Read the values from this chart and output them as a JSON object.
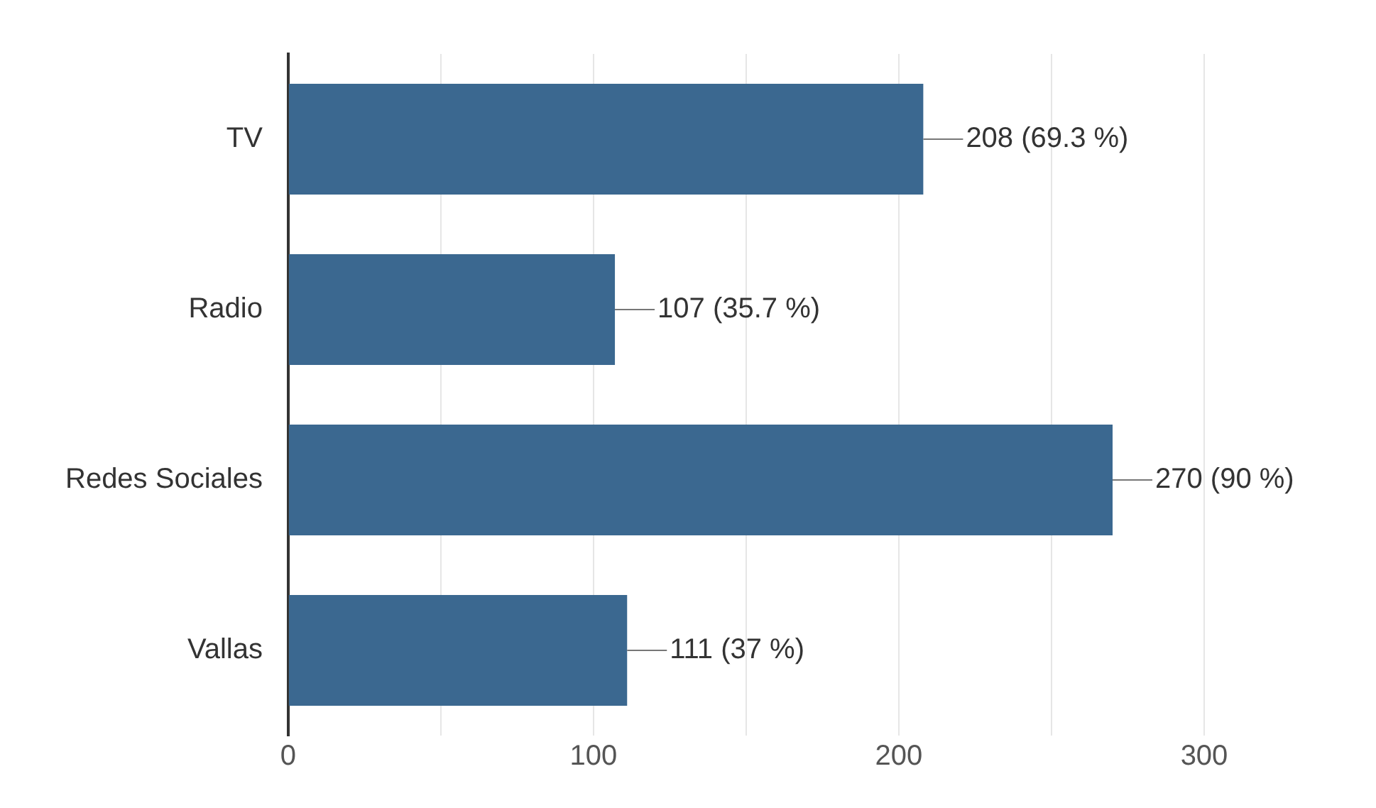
{
  "chart_data": {
    "type": "bar",
    "orientation": "horizontal",
    "categories": [
      "TV",
      "Radio",
      "Redes Sociales",
      "Vallas"
    ],
    "values": [
      208,
      107,
      270,
      111
    ],
    "value_labels": [
      "208 (69.3 %)",
      "107 (35.7 %)",
      "270 (90 %)",
      "111 (37 %)"
    ],
    "color": "#3b6890",
    "xlim": [
      0,
      300
    ],
    "xticks": [
      0,
      {
        "value": 50,
        "label": null
      },
      100,
      {
        "value": 150,
        "label": null
      },
      200,
      {
        "value": 250,
        "label": null
      },
      300
    ],
    "grid": "x"
  }
}
